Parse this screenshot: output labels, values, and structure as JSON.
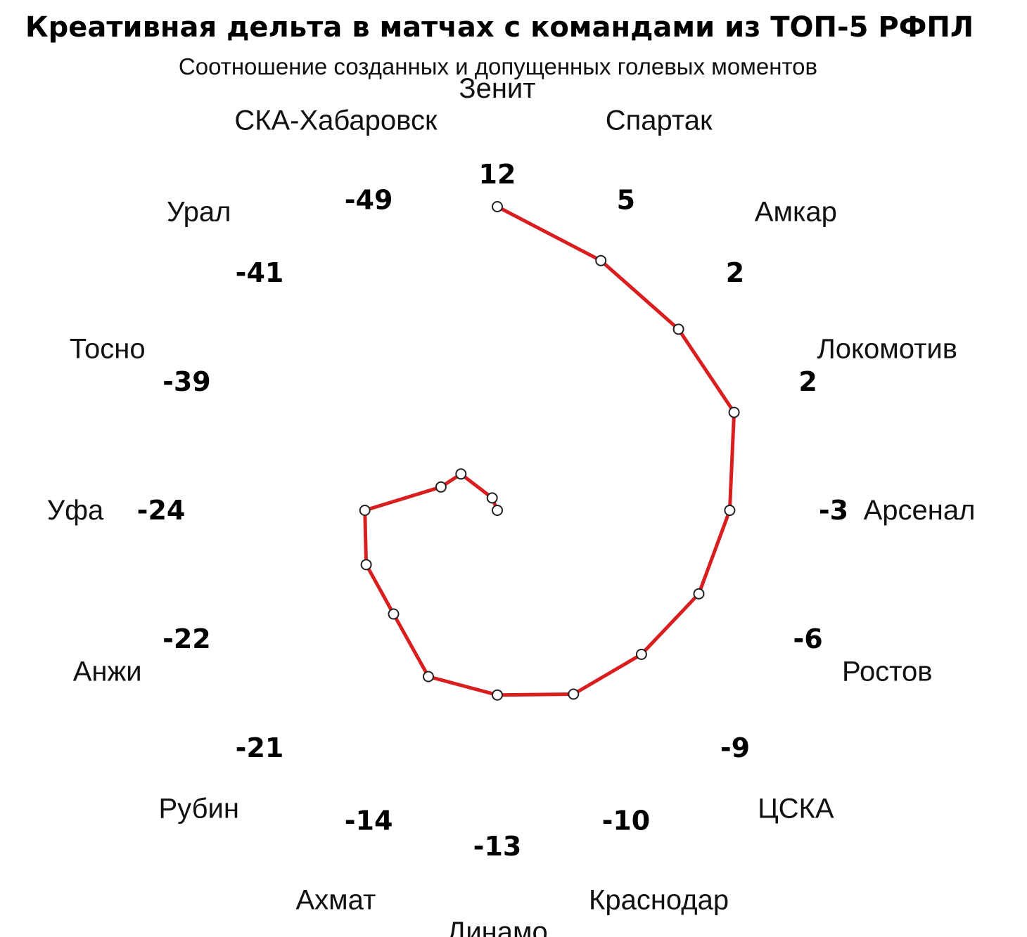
{
  "chart_data": {
    "type": "radar",
    "title": "Креативная дельта в матчах с командами из ТОП-5 РФПЛ",
    "subtitle": "Соотношение созданных и допущенных голевых моментов",
    "categories": [
      "Зенит",
      "Спартак",
      "Амкар",
      "Локомотив",
      "Арсенал",
      "Ростов",
      "ЦСКА",
      "Краснодар",
      "Динамо",
      "Ахмат",
      "Рубин",
      "Анжи",
      "Уфа",
      "Тосно",
      "Урал",
      "СКА-Хабаровск"
    ],
    "value_labels": [
      "12",
      "5",
      "2",
      "2",
      "-3",
      "-6",
      "-9",
      "-10",
      "-13",
      "-14",
      "-21",
      "-22",
      "-24",
      "-39",
      "-41",
      "-49"
    ],
    "series": [
      {
        "values": [
          12,
          5,
          2,
          2,
          -3,
          -6,
          -9,
          -10,
          -13,
          -14,
          -21,
          -22,
          -24,
          -39,
          -41,
          -49
        ]
      }
    ],
    "rlim": [
      -49,
      12
    ],
    "grid": false,
    "colors": {
      "line": "#d81e1e",
      "marker_fill": "#ffffff",
      "marker_stroke": "#222222"
    }
  }
}
